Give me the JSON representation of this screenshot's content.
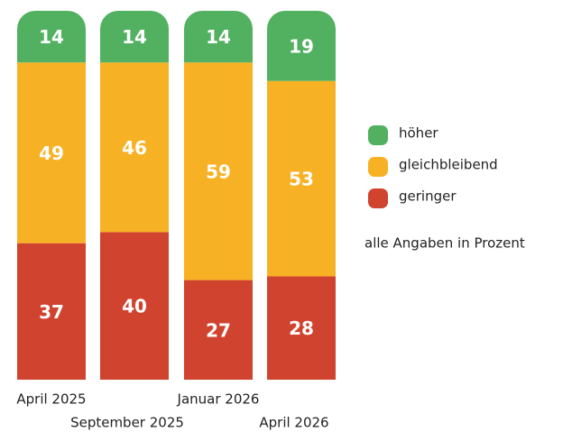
{
  "chart_data": {
    "type": "stacked_bar",
    "categories": [
      "April 2025",
      "September 2025",
      "Januar 2026",
      "April 2026"
    ],
    "series": [
      {
        "name": "höher",
        "color": "#52b161",
        "values": [
          14,
          14,
          14,
          19
        ]
      },
      {
        "name": "gleichbleibend",
        "color": "#f7b125",
        "values": [
          49,
          46,
          59,
          53
        ]
      },
      {
        "name": "geringer",
        "color": "#d0432f",
        "values": [
          37,
          40,
          27,
          28
        ]
      }
    ],
    "ylim": [
      0,
      100
    ],
    "note": "alle Angaben in Prozent",
    "legend": "right"
  }
}
